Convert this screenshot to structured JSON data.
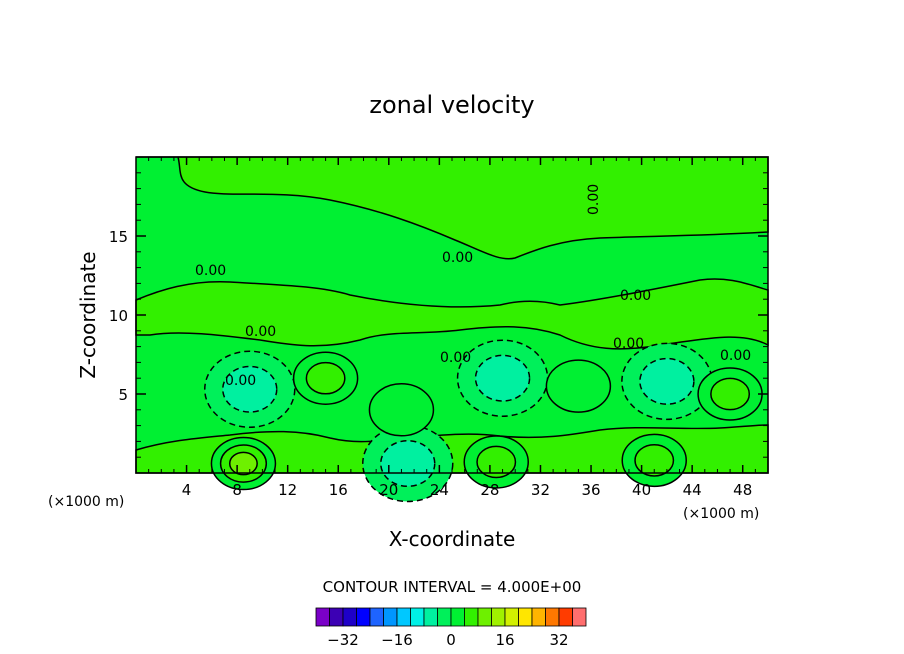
{
  "title": "zonal velocity",
  "contour_interval_label": "CONTOUR INTERVAL = 4.000E+00",
  "chart_data": {
    "type": "heatmap",
    "title": "zonal velocity",
    "xlabel": "X-coordinate",
    "ylabel": "Z-coordinate",
    "x_unit_label": "(×1000 m)",
    "z_unit_label": "(×1000 m)",
    "xlim": [
      0,
      50
    ],
    "ylim": [
      0,
      20
    ],
    "x_ticks": [
      "4",
      "8",
      "12",
      "16",
      "20",
      "24",
      "28",
      "32",
      "36",
      "40",
      "44",
      "48"
    ],
    "y_ticks": [
      "5",
      "10",
      "15"
    ],
    "contour_interval": 4.0,
    "contour_labels": [
      "0.00"
    ],
    "grid": false,
    "colorbar": {
      "ticks": [
        "−32",
        "−16",
        "0",
        "16",
        "32"
      ],
      "levels": [
        -40,
        -36,
        -32,
        -28,
        -24,
        -20,
        -16,
        -12,
        -8,
        -4,
        0,
        4,
        8,
        12,
        16,
        20,
        24,
        28,
        32,
        36,
        40
      ],
      "colors": [
        "#7a00c8",
        "#3c00b4",
        "#1e00c8",
        "#0000ff",
        "#1e64ff",
        "#0096ff",
        "#00c8ff",
        "#00f0e6",
        "#00f0a0",
        "#00f05a",
        "#00f032",
        "#32f000",
        "#6ef000",
        "#a0f000",
        "#d2f000",
        "#ffe600",
        "#ffb400",
        "#ff7800",
        "#ff3c00",
        "#ff6e6e"
      ]
    },
    "features": [
      {
        "kind": "min",
        "x": 9.0,
        "z": 5.3,
        "value": -8
      },
      {
        "kind": "min",
        "x": 29.0,
        "z": 6.0,
        "value": -8
      },
      {
        "kind": "min",
        "x": 42.0,
        "z": 5.8,
        "value": -8
      },
      {
        "kind": "min",
        "x": 21.5,
        "z": 0.6,
        "value": -8
      },
      {
        "kind": "max",
        "x": 8.5,
        "z": 0.6,
        "value": 12
      },
      {
        "kind": "max",
        "x": 28.5,
        "z": 0.7,
        "value": 8
      },
      {
        "kind": "max",
        "x": 41.0,
        "z": 0.8,
        "value": 8
      },
      {
        "kind": "max",
        "x": 47.0,
        "z": 5.0,
        "value": 8
      },
      {
        "kind": "max",
        "x": 15.0,
        "z": 6.0,
        "value": 8
      },
      {
        "kind": "max",
        "x": 21.0,
        "z": 4.0,
        "value": 4
      },
      {
        "kind": "max",
        "x": 35.0,
        "z": 5.5,
        "value": 4
      }
    ]
  }
}
